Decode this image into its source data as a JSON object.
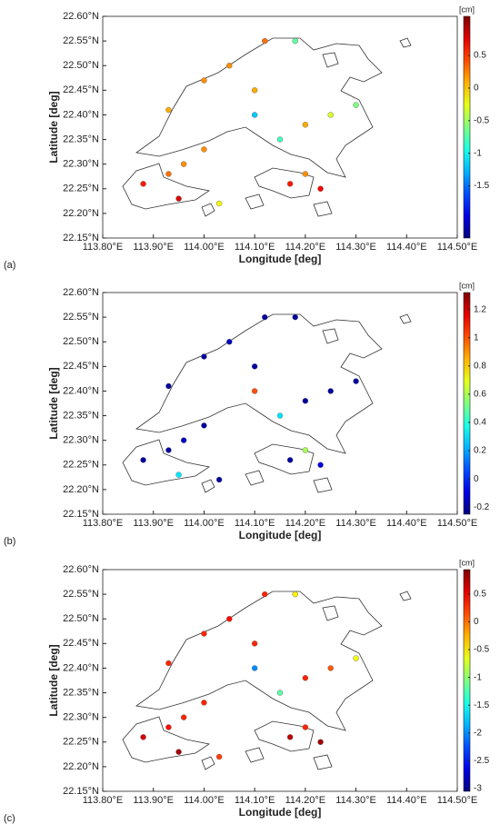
{
  "chart_data": [
    {
      "type": "scatter",
      "panel_label": "(a)",
      "xlabel": "Longitude [deg]",
      "ylabel": "Latitude [deg]",
      "colorbar_label": "[cm]",
      "colormap": "jet",
      "xlim": [
        113.8,
        114.5
      ],
      "ylim": [
        22.15,
        22.6
      ],
      "xticks": [
        {
          "value": 113.8,
          "label": "113.80°E"
        },
        {
          "value": 113.9,
          "label": "113.90°E"
        },
        {
          "value": 114.0,
          "label": "114.00°E"
        },
        {
          "value": 114.1,
          "label": "114.10°E"
        },
        {
          "value": 114.2,
          "label": "114.20°E"
        },
        {
          "value": 114.3,
          "label": "114.30°E"
        },
        {
          "value": 114.4,
          "label": "114.40°E"
        },
        {
          "value": 114.5,
          "label": "114.50°E"
        }
      ],
      "yticks": [
        {
          "value": 22.15,
          "label": "22.15°N"
        },
        {
          "value": 22.2,
          "label": "22.20°N"
        },
        {
          "value": 22.25,
          "label": "22.25°N"
        },
        {
          "value": 22.3,
          "label": "22.30°N"
        },
        {
          "value": 22.35,
          "label": "22.35°N"
        },
        {
          "value": 22.4,
          "label": "22.40°N"
        },
        {
          "value": 22.45,
          "label": "22.45°N"
        },
        {
          "value": 22.5,
          "label": "22.50°N"
        },
        {
          "value": 22.55,
          "label": "22.55°N"
        },
        {
          "value": 22.6,
          "label": "22.60°N"
        }
      ],
      "clim": [
        -2.3,
        1.1
      ],
      "cticks": [
        -1.5,
        -1,
        -0.5,
        0,
        0.5
      ],
      "x": [
        113.88,
        113.93,
        113.96,
        114.0,
        113.93,
        114.0,
        114.05,
        114.12,
        114.18,
        114.1,
        114.1,
        114.15,
        114.2,
        114.25,
        114.3,
        114.2,
        114.17,
        114.23,
        113.95,
        114.03
      ],
      "y": [
        22.26,
        22.28,
        22.3,
        22.33,
        22.41,
        22.47,
        22.5,
        22.55,
        22.55,
        22.45,
        22.4,
        22.35,
        22.38,
        22.4,
        22.42,
        22.28,
        22.26,
        22.25,
        22.23,
        22.22
      ],
      "values": [
        0.6,
        0.3,
        0.2,
        0.2,
        0.1,
        0.2,
        0.2,
        0.3,
        -0.7,
        0.1,
        -1.2,
        -0.8,
        0.1,
        -0.3,
        -0.6,
        0.2,
        0.6,
        0.7,
        0.8,
        -0.2
      ]
    },
    {
      "type": "scatter",
      "panel_label": "(b)",
      "xlabel": "Longitude [deg]",
      "ylabel": "Latitude [deg]",
      "colorbar_label": "[cm]",
      "colormap": "jet",
      "xlim": [
        113.8,
        114.5
      ],
      "ylim": [
        22.15,
        22.6
      ],
      "xticks": [
        {
          "value": 113.8,
          "label": "113.80°E"
        },
        {
          "value": 113.9,
          "label": "113.90°E"
        },
        {
          "value": 114.0,
          "label": "114.00°E"
        },
        {
          "value": 114.1,
          "label": "114.10°E"
        },
        {
          "value": 114.2,
          "label": "114.20°E"
        },
        {
          "value": 114.3,
          "label": "114.30°E"
        },
        {
          "value": 114.4,
          "label": "114.40°E"
        },
        {
          "value": 114.5,
          "label": "114.50°E"
        }
      ],
      "yticks": [
        {
          "value": 22.15,
          "label": "22.15°N"
        },
        {
          "value": 22.2,
          "label": "22.20°N"
        },
        {
          "value": 22.25,
          "label": "22.25°N"
        },
        {
          "value": 22.3,
          "label": "22.30°N"
        },
        {
          "value": 22.35,
          "label": "22.35°N"
        },
        {
          "value": 22.4,
          "label": "22.40°N"
        },
        {
          "value": 22.45,
          "label": "22.45°N"
        },
        {
          "value": 22.5,
          "label": "22.50°N"
        },
        {
          "value": 22.55,
          "label": "22.55°N"
        },
        {
          "value": 22.6,
          "label": "22.60°N"
        }
      ],
      "clim": [
        -0.25,
        1.32
      ],
      "cticks": [
        -0.2,
        0,
        0.2,
        0.4,
        0.6,
        0.8,
        1,
        1.2
      ],
      "x": [
        113.88,
        113.93,
        113.96,
        114.0,
        113.93,
        114.0,
        114.05,
        114.12,
        114.18,
        114.1,
        114.1,
        114.15,
        114.2,
        114.25,
        114.3,
        114.2,
        114.17,
        114.23,
        113.95,
        114.03
      ],
      "y": [
        22.26,
        22.28,
        22.3,
        22.33,
        22.41,
        22.47,
        22.5,
        22.55,
        22.55,
        22.45,
        22.4,
        22.35,
        22.38,
        22.4,
        22.42,
        22.28,
        22.26,
        22.25,
        22.23,
        22.22
      ],
      "values": [
        -0.2,
        -0.2,
        -0.15,
        -0.2,
        -0.2,
        -0.2,
        -0.15,
        -0.2,
        -0.2,
        -0.2,
        1.0,
        0.3,
        -0.2,
        -0.2,
        -0.2,
        0.6,
        -0.2,
        -0.1,
        0.3,
        -0.2
      ]
    },
    {
      "type": "scatter",
      "panel_label": "(c)",
      "xlabel": "Longitude [deg]",
      "ylabel": "Latitude [deg]",
      "colorbar_label": "[cm]",
      "colormap": "jet",
      "xlim": [
        113.8,
        114.5
      ],
      "ylim": [
        22.15,
        22.6
      ],
      "xticks": [
        {
          "value": 113.8,
          "label": "113.80°E"
        },
        {
          "value": 113.9,
          "label": "113.90°E"
        },
        {
          "value": 114.0,
          "label": "114.00°E"
        },
        {
          "value": 114.1,
          "label": "114.10°E"
        },
        {
          "value": 114.2,
          "label": "114.20°E"
        },
        {
          "value": 114.3,
          "label": "114.30°E"
        },
        {
          "value": 114.4,
          "label": "114.40°E"
        },
        {
          "value": 114.5,
          "label": "114.50°E"
        }
      ],
      "yticks": [
        {
          "value": 22.15,
          "label": "22.15°N"
        },
        {
          "value": 22.2,
          "label": "22.20°N"
        },
        {
          "value": 22.25,
          "label": "22.25°N"
        },
        {
          "value": 22.3,
          "label": "22.30°N"
        },
        {
          "value": 22.35,
          "label": "22.35°N"
        },
        {
          "value": 22.4,
          "label": "22.40°N"
        },
        {
          "value": 22.45,
          "label": "22.45°N"
        },
        {
          "value": 22.5,
          "label": "22.50°N"
        },
        {
          "value": 22.55,
          "label": "22.55°N"
        },
        {
          "value": 22.6,
          "label": "22.60°N"
        }
      ],
      "clim": [
        -3.05,
        0.94
      ],
      "cticks": [
        -3,
        -2.5,
        -2,
        -1.5,
        -1,
        -0.5,
        0,
        0.5
      ],
      "x": [
        113.88,
        113.93,
        113.96,
        114.0,
        113.93,
        114.0,
        114.05,
        114.12,
        114.18,
        114.1,
        114.1,
        114.15,
        114.2,
        114.25,
        114.3,
        114.2,
        114.17,
        114.23,
        113.95,
        114.03
      ],
      "y": [
        22.26,
        22.28,
        22.3,
        22.33,
        22.41,
        22.47,
        22.5,
        22.55,
        22.55,
        22.45,
        22.4,
        22.35,
        22.38,
        22.4,
        22.42,
        22.28,
        22.26,
        22.25,
        22.23,
        22.22
      ],
      "values": [
        0.6,
        0.4,
        0.3,
        0.3,
        0.3,
        0.3,
        0.4,
        0.3,
        -0.5,
        0.3,
        -2.0,
        -1.2,
        0.3,
        0.1,
        -0.6,
        0.3,
        0.7,
        0.8,
        0.8,
        0.2
      ]
    }
  ]
}
